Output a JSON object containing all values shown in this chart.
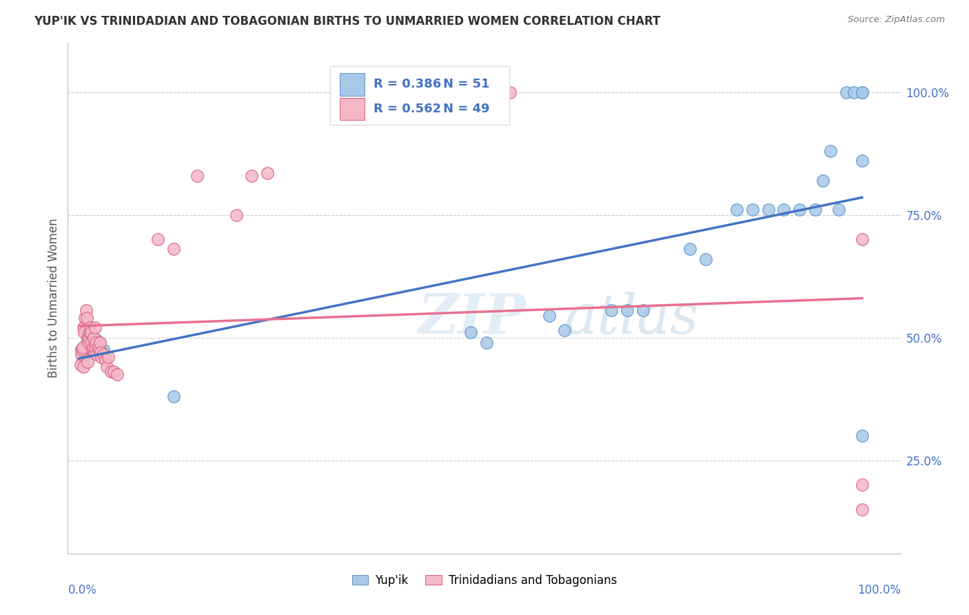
{
  "title": "YUP'IK VS TRINIDADIAN AND TOBAGONIAN BIRTHS TO UNMARRIED WOMEN CORRELATION CHART",
  "source": "Source: ZipAtlas.com",
  "ylabel": "Births to Unmarried Women",
  "legend_label1": "Yup'ik",
  "legend_label2": "Trinidadians and Tobagonians",
  "R1": "0.386",
  "N1": "51",
  "R2": "0.562",
  "N2": "49",
  "blue_color": "#a8c8e8",
  "pink_color": "#f4b8c8",
  "blue_line_color": "#4472c4",
  "pink_line_color": "#e87090",
  "blue_scatter_edge": "#6699cc",
  "pink_scatter_edge": "#dd6688",
  "blue_x": [
    0.002,
    0.003,
    0.004,
    0.005,
    0.006,
    0.007,
    0.008,
    0.009,
    0.01,
    0.011,
    0.012,
    0.013,
    0.014,
    0.015,
    0.016,
    0.017,
    0.018,
    0.02,
    0.021,
    0.022,
    0.023,
    0.024,
    0.025,
    0.027,
    0.03,
    0.032,
    0.12,
    0.5,
    0.52,
    0.6,
    0.62,
    0.68,
    0.7,
    0.72,
    0.78,
    0.8,
    0.84,
    0.86,
    0.88,
    0.9,
    0.92,
    0.94,
    0.95,
    0.96,
    0.97,
    0.98,
    0.99,
    1.0,
    1.0,
    1.0,
    1.0
  ],
  "blue_y": [
    0.475,
    0.47,
    0.455,
    0.46,
    0.465,
    0.475,
    0.48,
    0.49,
    0.485,
    0.495,
    0.49,
    0.485,
    0.49,
    0.48,
    0.48,
    0.47,
    0.48,
    0.495,
    0.49,
    0.495,
    0.48,
    0.485,
    0.49,
    0.475,
    0.475,
    0.46,
    0.38,
    0.51,
    0.49,
    0.545,
    0.515,
    0.555,
    0.555,
    0.555,
    0.68,
    0.66,
    0.76,
    0.76,
    0.76,
    0.76,
    0.76,
    0.76,
    0.82,
    0.88,
    0.76,
    1.0,
    1.0,
    1.0,
    1.0,
    0.86,
    0.3
  ],
  "pink_x": [
    0.001,
    0.002,
    0.003,
    0.004,
    0.005,
    0.005,
    0.006,
    0.007,
    0.008,
    0.009,
    0.01,
    0.01,
    0.011,
    0.012,
    0.013,
    0.014,
    0.015,
    0.015,
    0.016,
    0.017,
    0.018,
    0.019,
    0.02,
    0.02,
    0.021,
    0.022,
    0.023,
    0.025,
    0.026,
    0.027,
    0.028,
    0.03,
    0.033,
    0.035,
    0.037,
    0.04,
    0.044,
    0.048,
    0.1,
    0.12,
    0.15,
    0.2,
    0.22,
    0.24,
    0.5,
    0.55,
    1.0,
    1.0,
    1.0
  ],
  "pink_y": [
    0.445,
    0.465,
    0.475,
    0.48,
    0.44,
    0.52,
    0.51,
    0.54,
    0.555,
    0.54,
    0.45,
    0.5,
    0.49,
    0.5,
    0.51,
    0.52,
    0.51,
    0.49,
    0.475,
    0.48,
    0.5,
    0.47,
    0.48,
    0.52,
    0.49,
    0.465,
    0.48,
    0.475,
    0.49,
    0.47,
    0.46,
    0.465,
    0.455,
    0.44,
    0.46,
    0.43,
    0.43,
    0.425,
    0.7,
    0.68,
    0.83,
    0.75,
    0.83,
    0.835,
    1.0,
    1.0,
    0.7,
    0.15,
    0.2
  ]
}
